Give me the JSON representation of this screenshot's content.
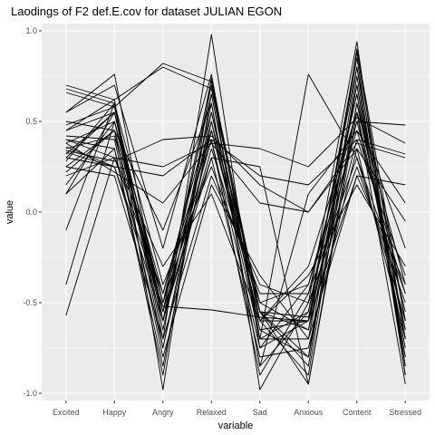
{
  "chart_data": {
    "type": "line",
    "title": "Laodings of F2 def.E.cov for dataset JULIAN EGON",
    "xlabel": "variable",
    "ylabel": "value",
    "categories": [
      "Excited",
      "Happy",
      "Angry",
      "Relaxed",
      "Sad",
      "Anxious",
      "Content",
      "Stressed"
    ],
    "ylim": [
      -1.04,
      1.04
    ],
    "yticks": [
      -1.0,
      -0.5,
      0.0,
      0.5,
      1.0
    ],
    "ytick_labels": [
      "-1.0",
      "-0.5",
      "0.0",
      "0.5",
      "1.0"
    ],
    "grid": true,
    "background": "#ebebeb",
    "gridline_color": "#ffffff",
    "line_color": "#000000",
    "series": [
      {
        "values": [
          0.7,
          0.62,
          -0.98,
          0.74,
          -0.98,
          -0.5,
          0.94,
          -0.9
        ]
      },
      {
        "values": [
          0.68,
          0.6,
          -0.7,
          0.98,
          -0.75,
          -0.6,
          0.88,
          -0.7
        ]
      },
      {
        "values": [
          0.66,
          0.58,
          -0.55,
          0.73,
          -0.55,
          -0.85,
          0.8,
          -0.6
        ]
      },
      {
        "values": [
          0.55,
          0.76,
          -0.6,
          0.7,
          -0.6,
          -0.9,
          0.75,
          -0.8
        ]
      },
      {
        "values": [
          0.5,
          0.45,
          -0.5,
          0.65,
          -0.7,
          -0.7,
          0.7,
          -0.85
        ]
      },
      {
        "values": [
          0.45,
          0.55,
          -0.65,
          0.6,
          -0.85,
          -0.55,
          0.65,
          -0.75
        ]
      },
      {
        "values": [
          0.42,
          0.4,
          -0.75,
          0.55,
          -0.65,
          -0.8,
          0.6,
          -0.65
        ]
      },
      {
        "values": [
          0.4,
          0.35,
          -0.85,
          0.5,
          -0.55,
          -0.95,
          0.55,
          -0.95
        ]
      },
      {
        "values": [
          0.38,
          0.5,
          -0.45,
          0.45,
          -0.6,
          -0.6,
          0.5,
          -0.55
        ]
      },
      {
        "values": [
          0.35,
          0.42,
          -0.55,
          0.4,
          -0.75,
          -0.4,
          0.45,
          -0.45
        ]
      },
      {
        "values": [
          0.33,
          0.25,
          -0.6,
          0.35,
          -0.5,
          -0.65,
          0.4,
          -0.35
        ]
      },
      {
        "values": [
          0.3,
          0.55,
          -0.5,
          0.3,
          -0.8,
          -0.75,
          0.35,
          -0.7
        ]
      },
      {
        "values": [
          0.28,
          0.6,
          -0.4,
          0.25,
          -0.45,
          -0.45,
          0.3,
          -0.6
        ]
      },
      {
        "values": [
          0.25,
          0.2,
          -0.7,
          0.2,
          -0.4,
          -0.5,
          0.25,
          -0.5
        ]
      },
      {
        "values": [
          0.22,
          0.45,
          -0.8,
          0.15,
          -0.35,
          -0.7,
          0.2,
          -0.4
        ]
      },
      {
        "values": [
          0.2,
          0.3,
          -0.3,
          0.1,
          -0.6,
          -0.35,
          0.15,
          -0.3
        ]
      },
      {
        "values": [
          0.15,
          0.5,
          -0.6,
          0.5,
          -0.7,
          -0.55,
          0.8,
          -0.9
        ]
      },
      {
        "values": [
          0.1,
          0.35,
          -0.9,
          0.65,
          -0.65,
          -0.6,
          0.85,
          -0.85
        ]
      },
      {
        "values": [
          -0.1,
          0.6,
          -0.75,
          0.45,
          -0.55,
          -0.65,
          0.7,
          -0.7
        ]
      },
      {
        "values": [
          -0.4,
          0.5,
          -0.55,
          0.4,
          -0.9,
          -0.45,
          0.65,
          -0.8
        ]
      },
      {
        "values": [
          -0.57,
          0.3,
          -0.45,
          0.55,
          -0.5,
          -0.4,
          0.55,
          -0.65
        ]
      },
      {
        "values": [
          0.48,
          0.58,
          0.82,
          0.72,
          -0.6,
          -0.3,
          0.55,
          -0.2
        ]
      },
      {
        "values": [
          0.45,
          0.62,
          0.8,
          0.68,
          -0.55,
          -0.8,
          0.9,
          -0.6
        ]
      },
      {
        "values": [
          0.36,
          0.25,
          0.2,
          0.4,
          0.2,
          0.15,
          0.4,
          0.32
        ]
      },
      {
        "values": [
          0.34,
          0.28,
          0.4,
          0.42,
          0.15,
          0.0,
          0.38,
          0.3
        ]
      },
      {
        "values": [
          0.38,
          0.22,
          0.05,
          0.38,
          0.05,
          0.0,
          0.35,
          -0.05
        ]
      },
      {
        "values": [
          0.3,
          0.25,
          -0.52,
          -0.54,
          -0.58,
          -0.6,
          0.2,
          0.15
        ]
      },
      {
        "values": [
          0.32,
          0.55,
          -0.5,
          0.45,
          -0.55,
          -0.58,
          0.5,
          0.48
        ]
      },
      {
        "values": [
          0.4,
          0.3,
          0.25,
          0.38,
          0.35,
          0.25,
          0.52,
          0.38
        ]
      },
      {
        "values": [
          0.55,
          0.7,
          -0.2,
          0.76,
          -0.7,
          0.76,
          0.3,
          -0.45
        ]
      },
      {
        "values": [
          0.25,
          0.45,
          -0.1,
          0.6,
          -0.85,
          0.1,
          0.45,
          0.05
        ]
      },
      {
        "values": [
          0.1,
          0.55,
          -0.6,
          0.3,
          0.25,
          -0.95,
          0.6,
          -0.4
        ]
      }
    ]
  }
}
